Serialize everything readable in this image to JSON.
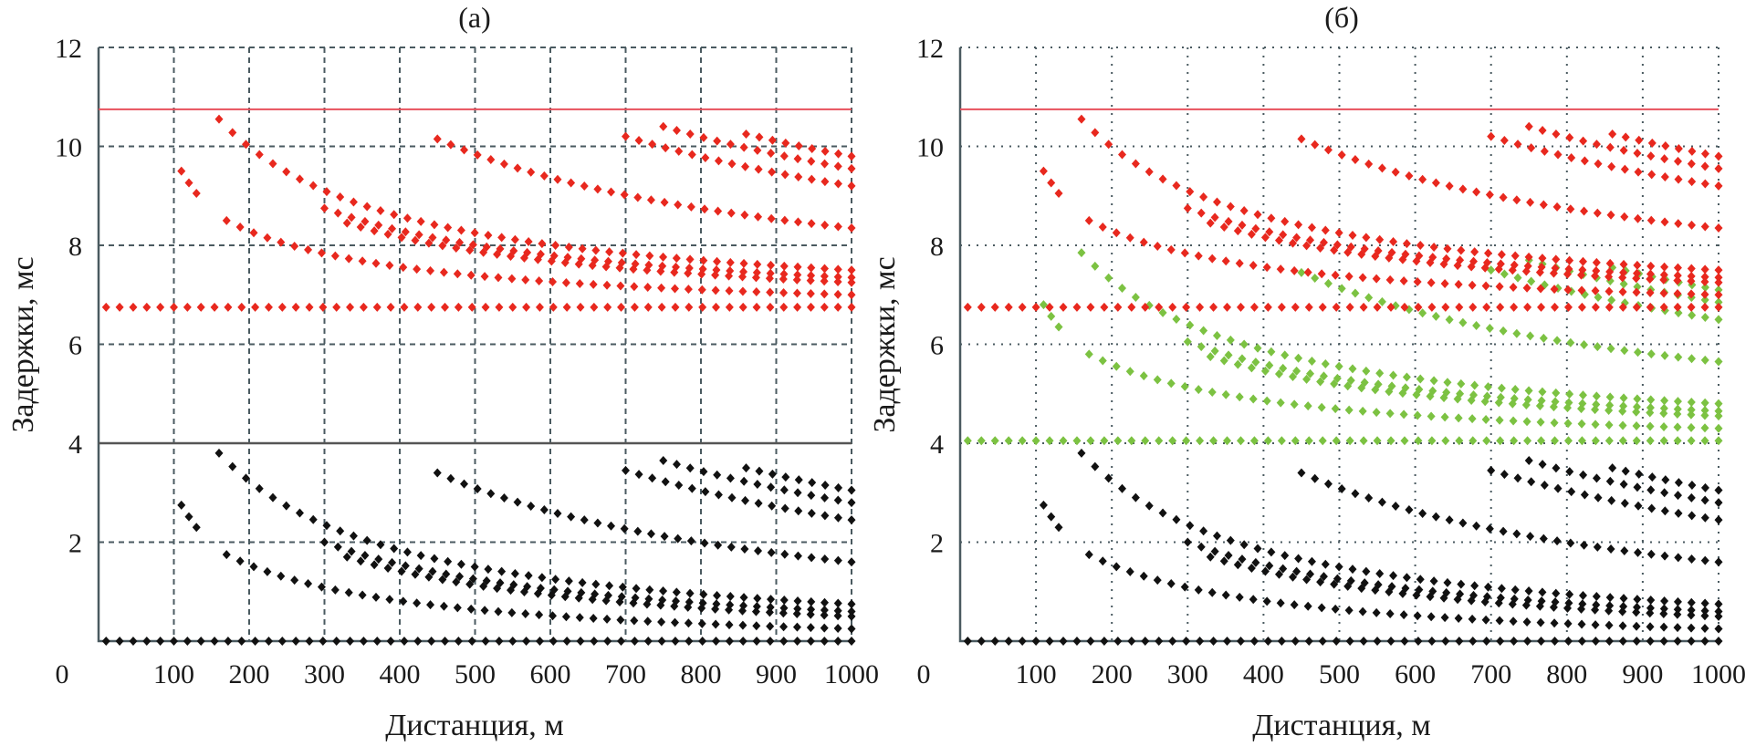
{
  "chart_data": [
    {
      "type": "scatter",
      "title": "(а)",
      "xlabel": "Дистанция, м",
      "ylabel": "Задержки, мс",
      "xlim": [
        0,
        1000
      ],
      "ylim": [
        0,
        12
      ],
      "xticks": [
        "0",
        "100",
        "200",
        "300",
        "400",
        "500",
        "600",
        "700",
        "800",
        "900",
        "1000"
      ],
      "yticks": [
        "0",
        "2",
        "4",
        "6",
        "8",
        "10",
        "12"
      ],
      "grid": "dashed",
      "hlines": [
        {
          "name": "upper-limit",
          "y": 10.75,
          "color": "#e8505b"
        },
        {
          "name": "divider",
          "y": 4,
          "color": "#555555"
        }
      ],
      "series": [
        {
          "name": "delays-black",
          "color": "#111111",
          "offset": 0
        },
        {
          "name": "delays-red",
          "color": "#e8281e",
          "offset": 6.75
        }
      ],
      "curves": [
        {
          "x": [
            10,
            1000
          ],
          "y": [
            0.0,
            0.0
          ]
        },
        {
          "x": [
            110,
            130
          ],
          "y": [
            2.75,
            2.3
          ]
        },
        {
          "x": [
            160,
            1000
          ],
          "y": [
            3.8,
            0.75
          ]
        },
        {
          "x": [
            300,
            1000
          ],
          "y": [
            2.0,
            0.6
          ]
        },
        {
          "x": [
            330,
            1000
          ],
          "y": [
            1.7,
            0.5
          ]
        },
        {
          "x": [
            170,
            1000
          ],
          "y": [
            1.75,
            0.25
          ]
        },
        {
          "x": [
            450,
            1000
          ],
          "y": [
            3.4,
            1.6
          ]
        },
        {
          "x": [
            700,
            1000
          ],
          "y": [
            3.45,
            2.45
          ]
        },
        {
          "x": [
            750,
            1000
          ],
          "y": [
            3.65,
            2.8
          ]
        },
        {
          "x": [
            860,
            1000
          ],
          "y": [
            3.5,
            3.05
          ]
        }
      ]
    },
    {
      "type": "scatter",
      "title": "(б)",
      "xlabel": "Дистанция, м",
      "ylabel": "Задержки, мс",
      "xlim": [
        0,
        1000
      ],
      "ylim": [
        0,
        12
      ],
      "xticks": [
        "0",
        "100",
        "200",
        "300",
        "400",
        "500",
        "600",
        "700",
        "800",
        "900",
        "1000"
      ],
      "yticks": [
        "0",
        "2",
        "4",
        "6",
        "8",
        "10",
        "12"
      ],
      "grid": "dotted",
      "hlines": [
        {
          "name": "upper-limit",
          "y": 10.75,
          "color": "#e8505b"
        }
      ],
      "series": [
        {
          "name": "delays-black",
          "color": "#111111",
          "offset": 0
        },
        {
          "name": "delays-green",
          "color": "#7cc242",
          "offset": 4.05
        },
        {
          "name": "delays-red",
          "color": "#e8281e",
          "offset": 6.75
        }
      ],
      "curves": [
        {
          "x": [
            10,
            1000
          ],
          "y": [
            0.0,
            0.0
          ]
        },
        {
          "x": [
            110,
            130
          ],
          "y": [
            2.75,
            2.3
          ]
        },
        {
          "x": [
            160,
            1000
          ],
          "y": [
            3.8,
            0.75
          ]
        },
        {
          "x": [
            300,
            1000
          ],
          "y": [
            2.0,
            0.6
          ]
        },
        {
          "x": [
            330,
            1000
          ],
          "y": [
            1.7,
            0.5
          ]
        },
        {
          "x": [
            170,
            1000
          ],
          "y": [
            1.75,
            0.25
          ]
        },
        {
          "x": [
            450,
            1000
          ],
          "y": [
            3.4,
            1.6
          ]
        },
        {
          "x": [
            700,
            1000
          ],
          "y": [
            3.45,
            2.45
          ]
        },
        {
          "x": [
            750,
            1000
          ],
          "y": [
            3.65,
            2.8
          ]
        },
        {
          "x": [
            860,
            1000
          ],
          "y": [
            3.5,
            3.05
          ]
        }
      ]
    }
  ]
}
